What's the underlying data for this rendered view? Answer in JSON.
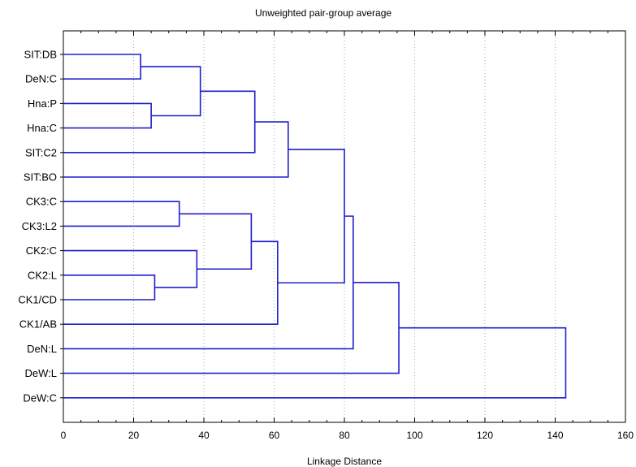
{
  "chart_data": {
    "type": "dendrogram",
    "title": "Unweighted pair-group average",
    "xlabel": "Linkage Distance",
    "xlim": [
      0,
      160
    ],
    "xticks": [
      0,
      20,
      40,
      60,
      80,
      100,
      120,
      140,
      160
    ],
    "grid": "vertical dotted",
    "line_color": "#1f1fcc",
    "leaves": [
      "SIT:DB",
      "DeN:C",
      "Hna:P",
      "Hna:C",
      "SIT:C2",
      "SIT:BO",
      "CK3:C",
      "CK3:L2",
      "CK2:C",
      "CK2:L",
      "CK1/CD",
      "CK1/AB",
      "DeN:L",
      "DeW:L",
      "DeW:C"
    ],
    "merges": [
      {
        "left": "SIT:DB",
        "right": "DeN:C",
        "distance": 22
      },
      {
        "left": "Hna:P",
        "right": "Hna:C",
        "distance": 25
      },
      {
        "left": "SIT:DB|DeN:C",
        "right": "Hna:P|Hna:C",
        "distance": 39
      },
      {
        "left": "SIT:DB|DeN:C|Hna:P|Hna:C",
        "right": "SIT:C2",
        "distance": 54.5
      },
      {
        "left": "SIT:DB..SIT:C2",
        "right": "SIT:BO",
        "distance": 64
      },
      {
        "left": "CK3:C",
        "right": "CK3:L2",
        "distance": 33
      },
      {
        "left": "CK2:L",
        "right": "CK1/CD",
        "distance": 26
      },
      {
        "left": "CK2:C",
        "right": "CK2:L|CK1/CD",
        "distance": 38
      },
      {
        "left": "CK3:C|CK3:L2",
        "right": "CK2:C|CK2:L|CK1/CD",
        "distance": 53.5
      },
      {
        "left": "CK3:C..CK1/CD",
        "right": "CK1/AB",
        "distance": 61
      },
      {
        "left": "SIT:DB..SIT:BO",
        "right": "CK3:C..CK1/AB",
        "distance": 80
      },
      {
        "left": "SIT:DB..CK1/AB",
        "right": "DeN:L",
        "distance": 82.5
      },
      {
        "left": "SIT:DB..DeN:L",
        "right": "DeW:L",
        "distance": 95.5
      },
      {
        "left": "SIT:DB..DeW:L",
        "right": "DeW:C",
        "distance": 143
      }
    ]
  }
}
